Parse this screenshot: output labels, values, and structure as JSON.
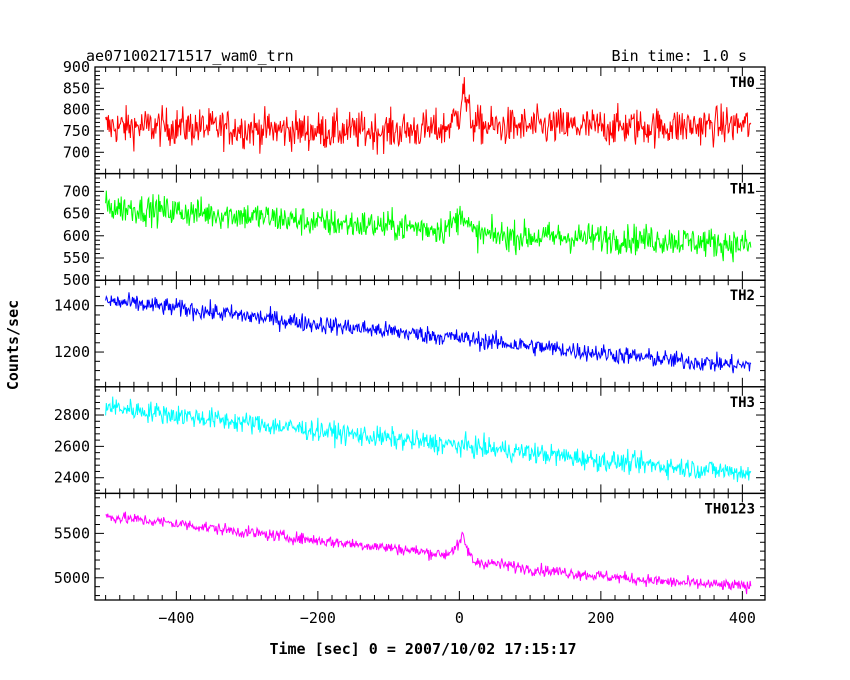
{
  "header": {
    "title": "ae071002171517_wam0_trn",
    "bin_time": "Bin time: 1.0 s"
  },
  "chart_data": {
    "type": "line",
    "title": "ae071002171517_wam0_trn",
    "subtitle": "Bin time: 1.0 s",
    "xlabel": "Time [sec] 0 = 2007/10/02 17:15:17",
    "ylabel": "Counts/sec",
    "xlim": [
      -515,
      432
    ],
    "x_ticks": [
      -400,
      -200,
      0,
      200,
      400
    ],
    "grid": false,
    "panels": [
      {
        "name": "TH0",
        "color": "#ff0000",
        "ylim": [
          650,
          900
        ],
        "y_ticks": [
          700,
          750,
          800,
          850,
          900
        ],
        "x": [
          -500,
          -400,
          -300,
          -200,
          -100,
          -20,
          0,
          5,
          10,
          20,
          50,
          100,
          200,
          300,
          400,
          412
        ],
        "y": [
          760,
          760,
          755,
          750,
          750,
          755,
          790,
          860,
          810,
          765,
          760,
          760,
          760,
          760,
          765,
          765
        ],
        "noise": 40
      },
      {
        "name": "TH1",
        "color": "#00ff00",
        "ylim": [
          500,
          740
        ],
        "y_ticks": [
          500,
          550,
          600,
          650,
          700
        ],
        "x": [
          -500,
          -400,
          -300,
          -200,
          -100,
          -20,
          0,
          5,
          10,
          20,
          50,
          100,
          200,
          300,
          400,
          412
        ],
        "y": [
          665,
          655,
          645,
          630,
          622,
          615,
          640,
          660,
          630,
          605,
          600,
          598,
          595,
          590,
          580,
          578
        ],
        "noise": 30
      },
      {
        "name": "TH2",
        "color": "#0000ff",
        "ylim": [
          1050,
          1510
        ],
        "y_ticks": [
          1200,
          1400
        ],
        "x": [
          -500,
          -400,
          -300,
          -200,
          -100,
          0,
          100,
          200,
          300,
          412
        ],
        "y": [
          1420,
          1390,
          1355,
          1320,
          1290,
          1260,
          1225,
          1195,
          1165,
          1140
        ],
        "noise": 35
      },
      {
        "name": "TH3",
        "color": "#00ffff",
        "ylim": [
          2300,
          2980
        ],
        "y_ticks": [
          2400,
          2600,
          2800
        ],
        "x": [
          -500,
          -400,
          -300,
          -200,
          -100,
          0,
          100,
          200,
          300,
          412
        ],
        "y": [
          2855,
          2800,
          2750,
          2700,
          2650,
          2605,
          2560,
          2510,
          2470,
          2430
        ],
        "noise": 60
      },
      {
        "name": "TH0123",
        "color": "#ff00ff",
        "ylim": [
          4750,
          5950
        ],
        "y_ticks": [
          5000,
          5500
        ],
        "x": [
          -500,
          -400,
          -300,
          -200,
          -100,
          -20,
          0,
          5,
          10,
          20,
          50,
          100,
          200,
          300,
          412
        ],
        "y": [
          5690,
          5610,
          5510,
          5420,
          5340,
          5260,
          5370,
          5480,
          5340,
          5180,
          5160,
          5100,
          5020,
          4950,
          4900
        ],
        "noise": 60
      }
    ]
  }
}
